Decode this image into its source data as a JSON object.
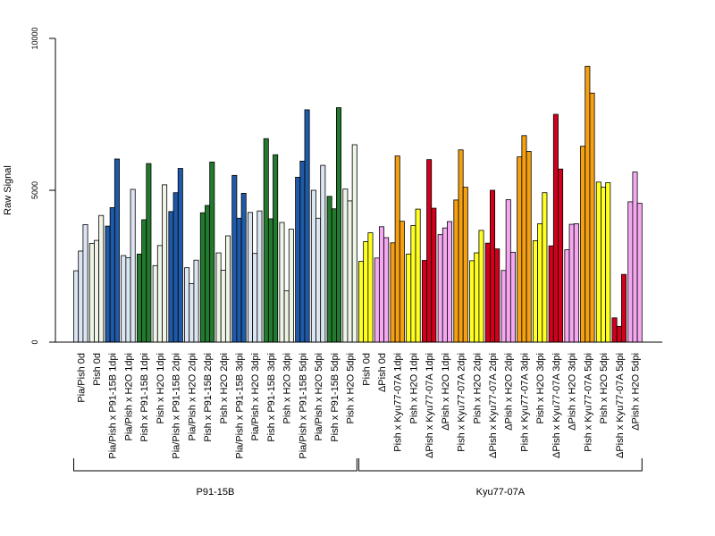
{
  "chart_data": {
    "type": "bar",
    "ylabel": "Raw Signal",
    "ylim": [
      0,
      10000
    ],
    "yticks": [
      "0",
      "5000",
      "10000"
    ],
    "categories": [
      "Pia/Pish 0d",
      "Pish 0d",
      "Pia/Pish x P91-15B 1dpi",
      "Pia/Pish x H2O 1dpi",
      "Pish x P91-15B 1dpi",
      "Pish x H2O 1dpi",
      "Pia/Pish x P91-15B 2dpi",
      "Pia/Pish x H2O 2dpi",
      "Pish x P91-15B 2dpi",
      "Pish x H2O 2dpi",
      "Pia/Pish x P91-15B 3dpi",
      "Pia/Pish x H2O 3dpi",
      "Pish x P91-15B 3dpi",
      "Pish x H2O 3dpi",
      "Pia/Pish x P91-15B 5dpi",
      "Pia/Pish x H2O 5dpi",
      "Pish x P91-15B 5dpi",
      "Pish x H2O 5dpi",
      "Pish 0d",
      "ΔPish 0d",
      "Pish x Kyu77-07A 1dpi",
      "Pish x H2O 1dpi",
      "ΔPish x Kyu77-07A 1dpi",
      "ΔPish x H2O 1dpi",
      "Pish x Kyu77-07A 2dpi",
      "Pish x H2O 2dpi",
      "ΔPish x Kyu77-07A 2dpi",
      "ΔPish x H2O 2dpi",
      "Pish x Kyu77-07A 3dpi",
      "Pish x H2O 3dpi",
      "ΔPish x Kyu77-07A 3dpi",
      "ΔPish x H2O 3dpi",
      "Pish x Kyu77-07A 5dpi",
      "Pish x H2O 5dpi",
      "ΔPish x Kyu77-07A 5dpi",
      "ΔPish x H2O 5dpi"
    ],
    "colors": [
      "#dce6f2",
      "#eef5e6",
      "#1f5aa8",
      "#dce6f2",
      "#237a2e",
      "#eef5e6",
      "#1f5aa8",
      "#dce6f2",
      "#237a2e",
      "#eef5e6",
      "#1f5aa8",
      "#dce6f2",
      "#237a2e",
      "#eef5e6",
      "#1f5aa8",
      "#dce6f2",
      "#237a2e",
      "#eef5e6",
      "#ffff22",
      "#f5a8f0",
      "#f5a010",
      "#ffff22",
      "#d1001c",
      "#f5a8f0",
      "#f5a010",
      "#ffff22",
      "#d1001c",
      "#f5a8f0",
      "#f5a010",
      "#ffff22",
      "#d1001c",
      "#f5a8f0",
      "#f5a010",
      "#ffff22",
      "#d1001c",
      "#f5a8f0"
    ],
    "values": [
      [
        2350,
        3000,
        3870
      ],
      [
        3250,
        3350,
        4170
      ],
      [
        3820,
        4430,
        6030
      ],
      [
        2850,
        2780,
        5030
      ],
      [
        2900,
        4030,
        5880
      ],
      [
        2520,
        3180,
        5180
      ],
      [
        4300,
        4920,
        5720
      ],
      [
        2450,
        1930,
        2700
      ],
      [
        4260,
        4500,
        5930
      ],
      [
        2940,
        2370,
        3500
      ],
      [
        5490,
        4080,
        4900
      ],
      [
        4270,
        2920,
        4320
      ],
      [
        6700,
        4060,
        6170
      ],
      [
        3940,
        1690,
        3720
      ],
      [
        5430,
        5960,
        7650
      ],
      [
        5000,
        4080,
        5820
      ],
      [
        4800,
        4390,
        7720
      ],
      [
        5040,
        4650,
        6500
      ],
      [
        2660,
        3310,
        3600
      ],
      [
        2770,
        3800,
        3440
      ],
      [
        3270,
        6130,
        3980
      ],
      [
        2900,
        3840,
        4380
      ],
      [
        2690,
        6010,
        4410
      ],
      [
        3540,
        3760,
        3970
      ],
      [
        4680,
        6330,
        5100
      ],
      [
        2680,
        2940,
        3680
      ],
      [
        3260,
        5000,
        3070
      ],
      [
        2360,
        4690,
        2960
      ],
      [
        6100,
        6800,
        6280
      ],
      [
        3340,
        3900,
        4920
      ],
      [
        3170,
        7500,
        5700
      ],
      [
        3040,
        3880,
        3900
      ],
      [
        6450,
        9080,
        8200
      ],
      [
        5270,
        5100,
        5250
      ],
      [
        800,
        520,
        2230
      ],
      [
        4620,
        5600,
        4570
      ]
    ],
    "groups": [
      {
        "name": "P91-15B",
        "first": 0,
        "last": 17
      },
      {
        "name": "Kyu77-07A",
        "first": 18,
        "last": 35
      }
    ]
  }
}
